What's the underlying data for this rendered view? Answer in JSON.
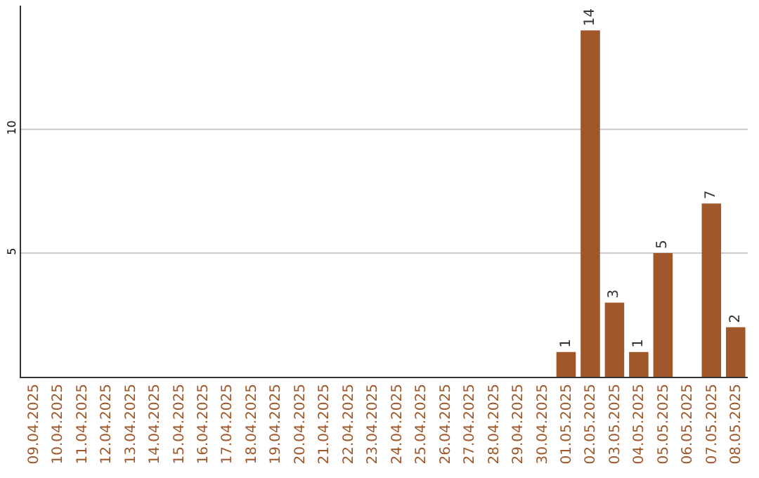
{
  "chart_data": {
    "type": "bar",
    "categories": [
      "09.04.2025",
      "10.04.2025",
      "11.04.2025",
      "12.04.2025",
      "13.04.2025",
      "14.04.2025",
      "15.04.2025",
      "16.04.2025",
      "17.04.2025",
      "18.04.2025",
      "19.04.2025",
      "20.04.2025",
      "21.04.2025",
      "22.04.2025",
      "23.04.2025",
      "24.04.2025",
      "25.04.2025",
      "26.04.2025",
      "27.04.2025",
      "28.04.2025",
      "29.04.2025",
      "30.04.2025",
      "01.05.2025",
      "02.05.2025",
      "03.05.2025",
      "04.05.2025",
      "05.05.2025",
      "06.05.2025",
      "07.05.2025",
      "08.05.2025"
    ],
    "values": [
      0,
      0,
      0,
      0,
      0,
      0,
      0,
      0,
      0,
      0,
      0,
      0,
      0,
      0,
      0,
      0,
      0,
      0,
      0,
      0,
      0,
      0,
      1,
      14,
      3,
      1,
      5,
      0,
      7,
      2
    ],
    "value_labels": [
      null,
      null,
      null,
      null,
      null,
      null,
      null,
      null,
      null,
      null,
      null,
      null,
      null,
      null,
      null,
      null,
      null,
      null,
      null,
      null,
      null,
      null,
      "1",
      "14",
      "3",
      "1",
      "5",
      null,
      "7",
      "2"
    ],
    "color": "#a0582a",
    "ylim": [
      0,
      15
    ],
    "yticks": [
      5,
      10
    ],
    "grid": "y",
    "legend": false
  }
}
